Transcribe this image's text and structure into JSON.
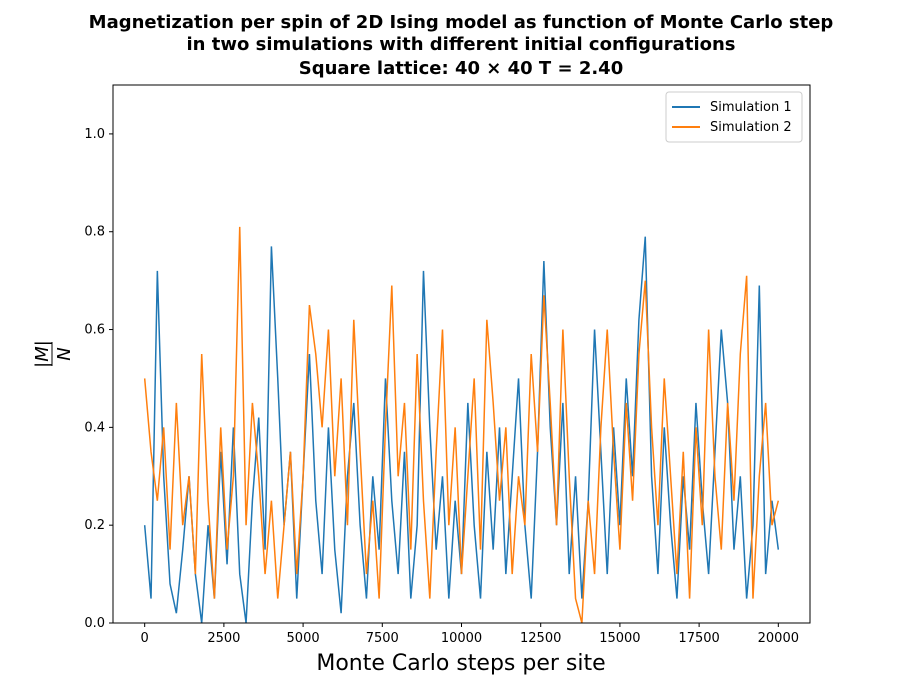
{
  "chart_data": {
    "type": "line",
    "title": [
      "Magnetization per spin of 2D Ising model as function of Monte Carlo step",
      "in two simulations with different initial configurations",
      "Square lattice: 40 × 40   T = 2.40"
    ],
    "xlabel": "Monte Carlo steps per site",
    "ylabel_numerator": "|M|",
    "ylabel_denominator": "N",
    "legend": "upper right",
    "grid": false,
    "xlim": [
      -1000,
      21000
    ],
    "ylim": [
      0,
      1.1
    ],
    "xticks": [
      0,
      2500,
      5000,
      7500,
      10000,
      12500,
      15000,
      17500,
      20000
    ],
    "yticks": [
      {
        "value": 0,
        "label": "0.0"
      },
      0.2,
      0.4,
      0.6,
      0.8,
      {
        "value": 1,
        "label": "1.0"
      }
    ],
    "x": [
      0,
      200,
      400,
      600,
      800,
      1000,
      1200,
      1400,
      1600,
      1800,
      2000,
      2200,
      2400,
      2600,
      2800,
      3000,
      3200,
      3400,
      3600,
      3800,
      4000,
      4200,
      4400,
      4600,
      4800,
      5000,
      5200,
      5400,
      5600,
      5800,
      6000,
      6200,
      6400,
      6600,
      6800,
      7000,
      7200,
      7400,
      7600,
      7800,
      8000,
      8200,
      8400,
      8600,
      8800,
      9000,
      9200,
      9400,
      9600,
      9800,
      10000,
      10200,
      10400,
      10600,
      10800,
      11000,
      11200,
      11400,
      11600,
      11800,
      12000,
      12200,
      12400,
      12600,
      12800,
      13000,
      13200,
      13400,
      13600,
      13800,
      14000,
      14200,
      14400,
      14600,
      14800,
      15000,
      15200,
      15400,
      15600,
      15800,
      16000,
      16200,
      16400,
      16600,
      16800,
      17000,
      17200,
      17400,
      17600,
      17800,
      18000,
      18200,
      18400,
      18600,
      18800,
      19000,
      19200,
      19400,
      19600,
      19800,
      20000
    ],
    "series": [
      {
        "name": "Simulation 1",
        "color": "#1f77b4",
        "values": [
          0.2,
          0.05,
          0.72,
          0.3,
          0.08,
          0.02,
          0.15,
          0.3,
          0.1,
          0.0,
          0.2,
          0.05,
          0.35,
          0.12,
          0.4,
          0.1,
          0.0,
          0.25,
          0.42,
          0.15,
          0.77,
          0.5,
          0.2,
          0.35,
          0.05,
          0.3,
          0.55,
          0.25,
          0.1,
          0.4,
          0.15,
          0.02,
          0.3,
          0.45,
          0.2,
          0.05,
          0.3,
          0.15,
          0.5,
          0.25,
          0.1,
          0.35,
          0.05,
          0.2,
          0.72,
          0.4,
          0.15,
          0.3,
          0.05,
          0.25,
          0.1,
          0.45,
          0.2,
          0.05,
          0.35,
          0.15,
          0.4,
          0.1,
          0.3,
          0.5,
          0.2,
          0.05,
          0.35,
          0.74,
          0.4,
          0.2,
          0.45,
          0.1,
          0.3,
          0.05,
          0.25,
          0.6,
          0.35,
          0.1,
          0.4,
          0.2,
          0.5,
          0.3,
          0.62,
          0.79,
          0.3,
          0.1,
          0.4,
          0.2,
          0.05,
          0.3,
          0.15,
          0.45,
          0.25,
          0.1,
          0.35,
          0.6,
          0.45,
          0.15,
          0.3,
          0.05,
          0.2,
          0.69,
          0.1,
          0.25,
          0.15
        ]
      },
      {
        "name": "Simulation 2",
        "color": "#ff7f0e",
        "values": [
          0.5,
          0.35,
          0.25,
          0.4,
          0.15,
          0.45,
          0.2,
          0.3,
          0.1,
          0.55,
          0.25,
          0.05,
          0.4,
          0.15,
          0.3,
          0.81,
          0.2,
          0.45,
          0.3,
          0.1,
          0.25,
          0.05,
          0.2,
          0.35,
          0.1,
          0.3,
          0.65,
          0.55,
          0.4,
          0.6,
          0.3,
          0.5,
          0.2,
          0.62,
          0.35,
          0.1,
          0.25,
          0.05,
          0.4,
          0.69,
          0.3,
          0.45,
          0.15,
          0.55,
          0.25,
          0.05,
          0.35,
          0.6,
          0.2,
          0.4,
          0.1,
          0.3,
          0.5,
          0.15,
          0.62,
          0.45,
          0.25,
          0.4,
          0.1,
          0.3,
          0.2,
          0.55,
          0.35,
          0.67,
          0.45,
          0.2,
          0.6,
          0.3,
          0.05,
          0.0,
          0.25,
          0.1,
          0.4,
          0.6,
          0.35,
          0.15,
          0.45,
          0.25,
          0.55,
          0.7,
          0.4,
          0.2,
          0.5,
          0.3,
          0.1,
          0.35,
          0.05,
          0.4,
          0.2,
          0.6,
          0.3,
          0.15,
          0.45,
          0.25,
          0.55,
          0.71,
          0.05,
          0.3,
          0.45,
          0.2,
          0.25
        ]
      }
    ]
  }
}
